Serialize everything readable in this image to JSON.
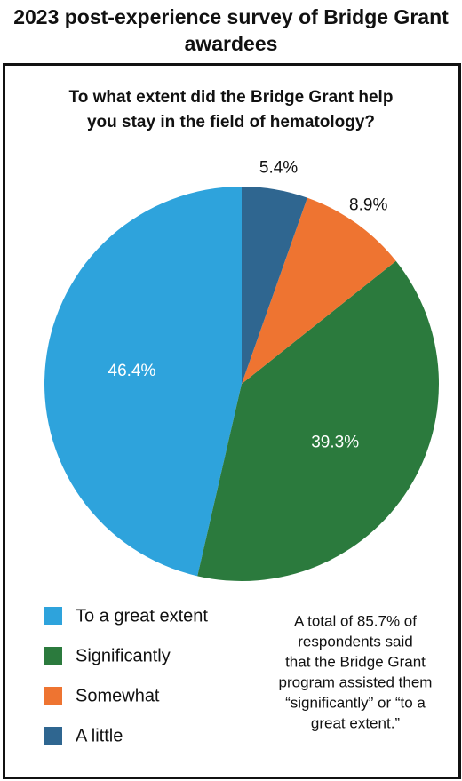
{
  "chart_data": {
    "type": "pie",
    "title": "2023 post-experience survey of Bridge Grant awardees",
    "subtitle": "To what extent did the Bridge Grant help you stay in the field of hematology?",
    "categories": [
      "To a great extent",
      "Significantly",
      "Somewhat",
      "A little"
    ],
    "values": [
      46.4,
      39.3,
      8.9,
      5.4
    ],
    "value_labels": [
      "46.4%",
      "39.3%",
      "8.9%",
      "5.4%"
    ],
    "colors": [
      "#2ea3dc",
      "#2b7a3d",
      "#ee7431",
      "#2f6690"
    ],
    "note": [
      "A total of 85.7% of",
      "respondents said",
      "that the Bridge Grant",
      "program assisted them",
      "“significantly” or “to a",
      "great extent.”"
    ]
  }
}
